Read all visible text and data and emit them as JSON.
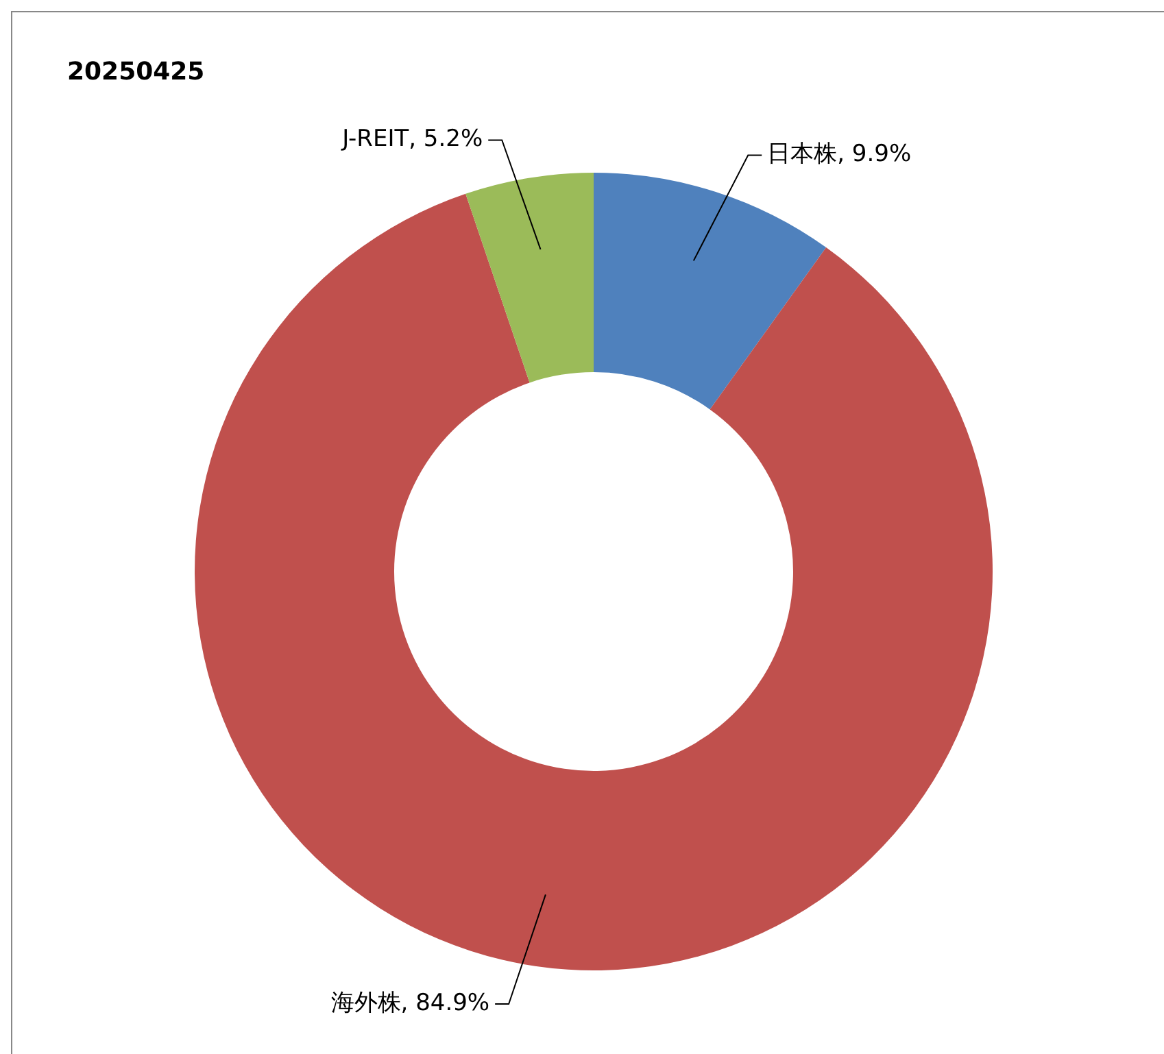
{
  "chart_data": {
    "type": "donut",
    "title": "20250425",
    "categories": [
      "日本株",
      "海外株",
      "J-REIT"
    ],
    "values": [
      9.9,
      84.9,
      5.2
    ],
    "colors": [
      "#4f81bd",
      "#c0504d",
      "#9bbb59"
    ],
    "value_labels": [
      "9.9%",
      "84.9%",
      "5.2%"
    ],
    "legend": false
  }
}
